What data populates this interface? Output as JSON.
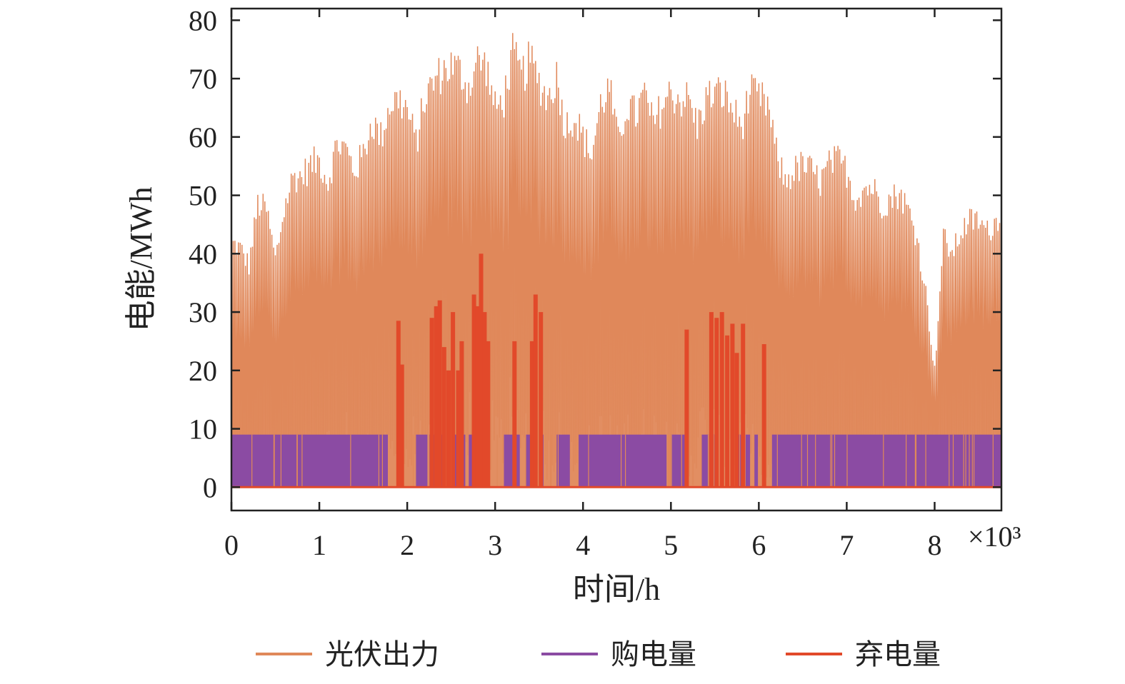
{
  "chart_data": {
    "type": "line",
    "title": "",
    "xlabel": "时间/h",
    "ylabel": "电能/MWh",
    "x_multiplier_label": "×10³",
    "xlim": [
      0,
      8760
    ],
    "ylim": [
      -4,
      82
    ],
    "x_ticks": [
      {
        "value": 0,
        "label": "0"
      },
      {
        "value": 1000,
        "label": "1"
      },
      {
        "value": 2000,
        "label": "2"
      },
      {
        "value": 3000,
        "label": "3"
      },
      {
        "value": 4000,
        "label": "4"
      },
      {
        "value": 5000,
        "label": "5"
      },
      {
        "value": 6000,
        "label": "6"
      },
      {
        "value": 7000,
        "label": "7"
      },
      {
        "value": 8000,
        "label": "8"
      }
    ],
    "y_ticks": [
      {
        "value": 0,
        "label": "0"
      },
      {
        "value": 10,
        "label": "10"
      },
      {
        "value": 20,
        "label": "20"
      },
      {
        "value": 30,
        "label": "30"
      },
      {
        "value": 40,
        "label": "40"
      },
      {
        "value": 50,
        "label": "50"
      },
      {
        "value": 60,
        "label": "60"
      },
      {
        "value": 70,
        "label": "70"
      },
      {
        "value": 80,
        "label": "80"
      }
    ],
    "grid": false,
    "legend_position": "bottom",
    "series": [
      {
        "name": "光伏出力",
        "color": "#e0885a",
        "envelope_x": [
          0,
          100,
          200,
          300,
          400,
          500,
          600,
          700,
          800,
          900,
          1000,
          1100,
          1200,
          1300,
          1400,
          1500,
          1600,
          1700,
          1800,
          1900,
          2000,
          2100,
          2200,
          2300,
          2400,
          2500,
          2600,
          2700,
          2800,
          2900,
          3000,
          3100,
          3200,
          3300,
          3400,
          3500,
          3600,
          3700,
          3800,
          3900,
          4000,
          4100,
          4200,
          4300,
          4400,
          4500,
          4600,
          4700,
          4800,
          4900,
          5000,
          5100,
          5200,
          5300,
          5400,
          5500,
          5600,
          5700,
          5800,
          5900,
          6000,
          6100,
          6200,
          6300,
          6400,
          6500,
          6600,
          6700,
          6800,
          6900,
          7000,
          7100,
          7200,
          7300,
          7400,
          7500,
          7600,
          7700,
          7800,
          7900,
          8000,
          8100,
          8200,
          8300,
          8400,
          8500,
          8600,
          8700,
          8760
        ],
        "envelope_y": [
          44,
          43,
          40,
          51,
          50,
          41,
          50,
          56,
          56,
          58,
          59,
          55,
          62,
          61,
          57,
          60,
          66,
          63,
          69,
          70,
          68,
          62,
          70,
          73,
          75,
          76,
          75,
          72,
          77,
          76,
          68,
          70,
          78,
          74,
          77,
          73,
          70,
          74,
          65,
          67,
          63,
          60,
          69,
          72,
          62,
          69,
          67,
          71,
          65,
          69,
          71,
          70,
          70,
          65,
          70,
          71,
          71,
          68,
          65,
          71,
          70,
          69,
          60,
          55,
          57,
          58,
          57,
          55,
          58,
          59,
          57,
          52,
          54,
          54,
          51,
          52,
          53,
          50,
          45,
          35,
          21,
          45,
          42,
          46,
          48,
          48,
          46,
          48,
          50
        ],
        "trough_y": [
          2,
          2,
          5,
          3,
          6,
          1,
          8,
          9,
          4,
          10,
          7,
          12,
          8,
          14,
          10,
          8,
          14,
          10,
          9,
          12,
          10,
          15,
          8,
          15,
          20,
          11,
          12,
          18,
          13,
          13,
          18,
          15,
          22,
          18,
          20,
          16,
          14,
          15,
          10,
          10,
          8,
          13,
          14,
          15,
          10,
          15,
          12,
          15,
          15,
          15,
          13,
          10,
          10,
          15,
          18,
          14,
          10,
          15,
          13,
          12,
          8,
          4,
          5,
          8,
          5,
          10,
          6,
          10,
          8,
          8,
          10,
          9,
          8,
          9,
          6,
          7,
          8,
          7,
          5,
          10,
          8,
          10,
          8,
          8,
          10,
          9,
          10,
          10,
          12
        ]
      },
      {
        "name": "购电量",
        "color": "#8b4ba3",
        "level": 9,
        "active_ranges": [
          [
            0,
            1780
          ],
          [
            2100,
            2230
          ],
          [
            2250,
            2460
          ],
          [
            2500,
            2560
          ],
          [
            2600,
            2660
          ],
          [
            2700,
            2760
          ],
          [
            3100,
            3280
          ],
          [
            3350,
            3400
          ],
          [
            3500,
            3550
          ],
          [
            3700,
            3850
          ],
          [
            3950,
            4950
          ],
          [
            5000,
            5180
          ],
          [
            5350,
            5520
          ],
          [
            5760,
            5800
          ],
          [
            5850,
            5900
          ],
          [
            5950,
            5990
          ],
          [
            6150,
            8760
          ]
        ]
      },
      {
        "name": "弃电量",
        "color": "#e2492a",
        "spikes": [
          {
            "x": 1900,
            "y": 28.5
          },
          {
            "x": 1940,
            "y": 21
          },
          {
            "x": 2280,
            "y": 29
          },
          {
            "x": 2330,
            "y": 31
          },
          {
            "x": 2370,
            "y": 32
          },
          {
            "x": 2420,
            "y": 24
          },
          {
            "x": 2470,
            "y": 20
          },
          {
            "x": 2520,
            "y": 30
          },
          {
            "x": 2580,
            "y": 20
          },
          {
            "x": 2620,
            "y": 25
          },
          {
            "x": 2760,
            "y": 33
          },
          {
            "x": 2800,
            "y": 31
          },
          {
            "x": 2840,
            "y": 40
          },
          {
            "x": 2880,
            "y": 30
          },
          {
            "x": 2920,
            "y": 25
          },
          {
            "x": 3220,
            "y": 25
          },
          {
            "x": 3420,
            "y": 25
          },
          {
            "x": 3460,
            "y": 33
          },
          {
            "x": 3520,
            "y": 30
          },
          {
            "x": 5180,
            "y": 27
          },
          {
            "x": 5460,
            "y": 30
          },
          {
            "x": 5520,
            "y": 29
          },
          {
            "x": 5580,
            "y": 30
          },
          {
            "x": 5640,
            "y": 26
          },
          {
            "x": 5700,
            "y": 28
          },
          {
            "x": 5750,
            "y": 23
          },
          {
            "x": 5820,
            "y": 28
          },
          {
            "x": 6060,
            "y": 24.5
          }
        ]
      }
    ]
  }
}
